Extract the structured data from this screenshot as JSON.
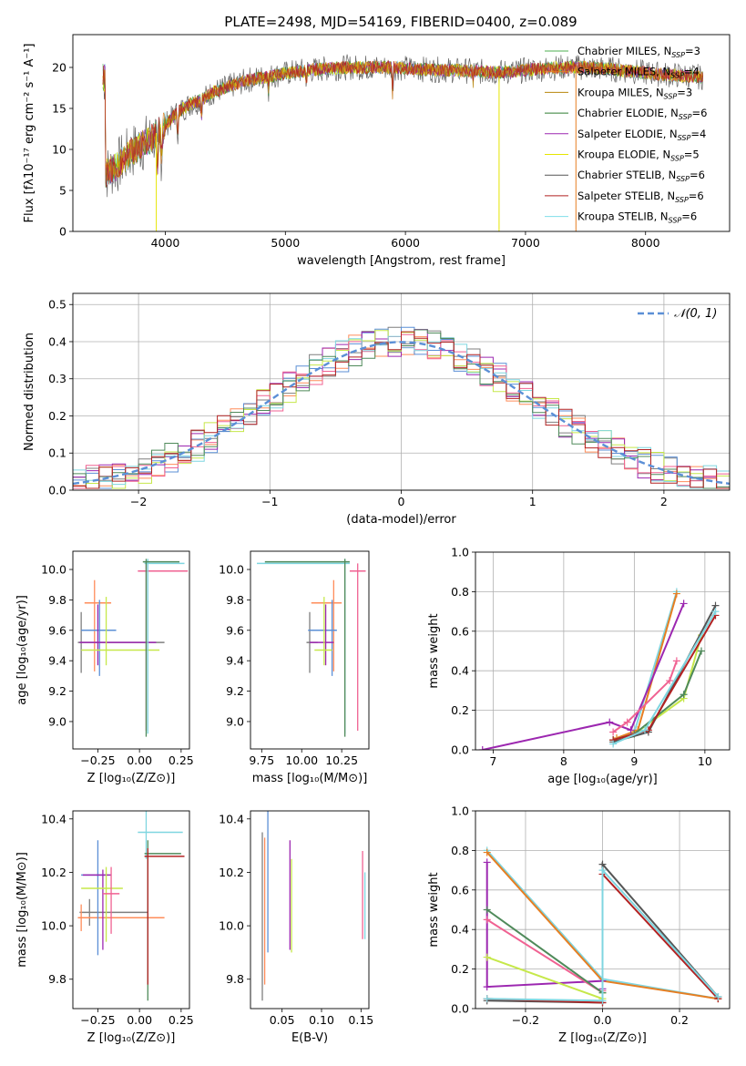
{
  "title": "PLATE=2498, MJD=54169, FIBERID=0400, z=0.089",
  "colors": {
    "series": [
      "#4caf50",
      "#e67e22",
      "#b8860b",
      "#2e7d32",
      "#9c27b0",
      "#e6e600",
      "#555555",
      "#b22222",
      "#80deea"
    ],
    "gauss": "#5b8fd6",
    "multi": [
      "#7f7f7f",
      "#ff8c5a",
      "#5b8fd6",
      "#9c27b0",
      "#c6e84a",
      "#f06292",
      "#7fd6e0",
      "#4f8a5a",
      "#b22222",
      "#e67e22",
      "#333333"
    ]
  },
  "chart_data": [
    {
      "id": "spectrum",
      "type": "line",
      "xlabel": "wavelength [Angstrom, rest frame]",
      "ylabel": "Flux [fλ10⁻¹⁷ erg cm⁻² s⁻¹ A⁻¹]",
      "xlim": [
        3230,
        8700
      ],
      "ylim": [
        0,
        24
      ],
      "xticks": [
        4000,
        5000,
        6000,
        7000,
        8000
      ],
      "yticks": [
        0,
        5,
        10,
        15,
        20
      ],
      "grid": false,
      "legend": "upper right",
      "series": [
        {
          "name": "Chabrier MILES, N",
          "sub": "SSP",
          "suffix": "=3"
        },
        {
          "name": "Salpeter MILES, N",
          "sub": "SSP",
          "suffix": "=4"
        },
        {
          "name": "Kroupa MILES, N",
          "sub": "SSP",
          "suffix": "=3"
        },
        {
          "name": "Chabrier ELODIE, N",
          "sub": "SSP",
          "suffix": "=6"
        },
        {
          "name": "Salpeter ELODIE, N",
          "sub": "SSP",
          "suffix": "=4"
        },
        {
          "name": "Kroupa ELODIE, N",
          "sub": "SSP",
          "suffix": "=5"
        },
        {
          "name": "Chabrier STELIB, N",
          "sub": "SSP",
          "suffix": "=6"
        },
        {
          "name": "Salpeter STELIB, N",
          "sub": "SSP",
          "suffix": "=6"
        },
        {
          "name": "Kroupa STELIB, N",
          "sub": "SSP",
          "suffix": "=6"
        }
      ],
      "continuum": [
        [
          3500,
          7
        ],
        [
          3600,
          8
        ],
        [
          3700,
          9.5
        ],
        [
          3800,
          10.5
        ],
        [
          3900,
          11.5
        ],
        [
          4000,
          13
        ],
        [
          4100,
          14.5
        ],
        [
          4200,
          15.5
        ],
        [
          4300,
          16
        ],
        [
          4400,
          17
        ],
        [
          4500,
          17.5
        ],
        [
          4700,
          18.5
        ],
        [
          4900,
          19
        ],
        [
          5100,
          19.5
        ],
        [
          5300,
          19.8
        ],
        [
          5500,
          20
        ],
        [
          5700,
          20
        ],
        [
          5900,
          20
        ],
        [
          6100,
          19.8
        ],
        [
          6300,
          19.7
        ],
        [
          6500,
          19.6
        ],
        [
          6700,
          19.4
        ],
        [
          6900,
          19.5
        ],
        [
          7100,
          19.8
        ],
        [
          7300,
          20
        ],
        [
          7500,
          20
        ],
        [
          7700,
          19.8
        ],
        [
          7900,
          19.5
        ],
        [
          8100,
          19.2
        ],
        [
          8300,
          19
        ],
        [
          8500,
          18.8
        ]
      ]
    },
    {
      "id": "residuals",
      "type": "histogram",
      "xlabel": "(data-model)/error",
      "ylabel": "Normed distribution",
      "xlim": [
        -2.5,
        2.5
      ],
      "ylim": [
        0,
        0.53
      ],
      "xticks": [
        -2,
        -1,
        0,
        1,
        2
      ],
      "yticks": [
        0.0,
        0.1,
        0.2,
        0.3,
        0.4,
        0.5
      ],
      "grid": true,
      "legend": "upper right",
      "legend_label": "𝒩(0, 1)",
      "bin_width": 0.1
    },
    {
      "id": "age_vs_Z",
      "type": "errorbar",
      "xlabel": "Z [log₁₀(Z/Z⊙)]",
      "ylabel": "age  [log₁₀(age/yr)]",
      "xlim": [
        -0.4,
        0.3
      ],
      "ylim": [
        8.82,
        10.12
      ],
      "xticks": [
        -0.25,
        0.0,
        0.25
      ],
      "yticks": [
        9.0,
        9.2,
        9.4,
        9.6,
        9.8,
        10.0
      ],
      "points": [
        {
          "x": -0.35,
          "y": 9.52,
          "ex": [
            0.02,
            0.5
          ],
          "ey": [
            0.2,
            0.2
          ]
        },
        {
          "x": -0.27,
          "y": 9.78,
          "ex": [
            0.06,
            0.1
          ],
          "ey": [
            0.45,
            0.15
          ]
        },
        {
          "x": -0.24,
          "y": 9.6,
          "ex": [
            0.11,
            0.1
          ],
          "ey": [
            0.3,
            0.2
          ]
        },
        {
          "x": -0.25,
          "y": 9.52,
          "ex": [
            0.11,
            0.35
          ],
          "ey": [
            0.15,
            0.25
          ]
        },
        {
          "x": -0.2,
          "y": 9.47,
          "ex": [
            0.15,
            0.32
          ],
          "ey": [
            0.1,
            0.35
          ]
        },
        {
          "x": 0.04,
          "y": 9.99,
          "ex": [
            0.05,
            0.25
          ],
          "ey": [
            1.05,
            0.05
          ]
        },
        {
          "x": 0.05,
          "y": 10.04,
          "ex": [
            0.02,
            0.22
          ],
          "ey": [
            1.12,
            0.03
          ]
        },
        {
          "x": 0.04,
          "y": 10.05,
          "ex": [
            0.02,
            0.2
          ],
          "ey": [
            1.15,
            0.02
          ]
        }
      ]
    },
    {
      "id": "age_vs_mass",
      "type": "errorbar",
      "xlabel": "mass [log₁₀(M/M⊙)]",
      "ylabel": "",
      "xlim": [
        9.68,
        10.42
      ],
      "ylim": [
        8.82,
        10.12
      ],
      "xticks": [
        9.75,
        10.0,
        10.25
      ],
      "yticks": [
        9.0,
        9.2,
        9.4,
        9.6,
        9.8,
        10.0
      ],
      "points": [
        {
          "x": 10.05,
          "y": 9.52,
          "ex": [
            0.02,
            0.05
          ],
          "ey": [
            0.2,
            0.2
          ]
        },
        {
          "x": 10.2,
          "y": 9.78,
          "ex": [
            0.14,
            0.05
          ],
          "ey": [
            0.45,
            0.15
          ]
        },
        {
          "x": 10.19,
          "y": 9.6,
          "ex": [
            0.15,
            0.03
          ],
          "ey": [
            0.3,
            0.2
          ]
        },
        {
          "x": 10.15,
          "y": 9.52,
          "ex": [
            0.1,
            0.05
          ],
          "ey": [
            0.15,
            0.25
          ]
        },
        {
          "x": 10.14,
          "y": 9.47,
          "ex": [
            0.06,
            0.05
          ],
          "ey": [
            0.1,
            0.35
          ]
        },
        {
          "x": 10.35,
          "y": 9.99,
          "ex": [
            0.05,
            0.05
          ],
          "ey": [
            1.05,
            0.05
          ]
        },
        {
          "x": 10.27,
          "y": 10.04,
          "ex": [
            0.55,
            0.03
          ],
          "ey": [
            1.12,
            0.03
          ]
        },
        {
          "x": 10.27,
          "y": 10.05,
          "ex": [
            0.5,
            0.03
          ],
          "ey": [
            1.15,
            0.02
          ]
        }
      ]
    },
    {
      "id": "weight_vs_age",
      "type": "line",
      "xlabel": "age  [log₁₀(age/yr)]",
      "ylabel": "mass weight",
      "xlim": [
        6.75,
        10.35
      ],
      "ylim": [
        0,
        1
      ],
      "xticks": [
        7,
        8,
        9,
        10
      ],
      "yticks": [
        0.0,
        0.2,
        0.4,
        0.6,
        0.8,
        1.0
      ],
      "grid": true,
      "series": [
        {
          "x": [
            8.7,
            9.0,
            9.6
          ],
          "y": [
            0.05,
            0.09,
            0.8
          ]
        },
        {
          "x": [
            8.75,
            9.05,
            9.6
          ],
          "y": [
            0.06,
            0.1,
            0.79
          ]
        },
        {
          "x": [
            6.85,
            8.65,
            8.95,
            9.7
          ],
          "y": [
            0.0,
            0.14,
            0.1,
            0.74
          ]
        },
        {
          "x": [
            8.7,
            8.9,
            9.5,
            9.6
          ],
          "y": [
            0.09,
            0.14,
            0.35,
            0.45
          ]
        },
        {
          "x": [
            8.7,
            9.0,
            9.7,
            9.95
          ],
          "y": [
            0.05,
            0.08,
            0.26,
            0.58
          ]
        },
        {
          "x": [
            8.7,
            9.0,
            9.7,
            9.95
          ],
          "y": [
            0.05,
            0.08,
            0.28,
            0.5
          ]
        },
        {
          "x": [
            8.7,
            9.2,
            10.15
          ],
          "y": [
            0.04,
            0.09,
            0.73
          ]
        },
        {
          "x": [
            8.7,
            9.2,
            10.15
          ],
          "y": [
            0.05,
            0.1,
            0.68
          ]
        },
        {
          "x": [
            8.7,
            9.15,
            10.15
          ],
          "y": [
            0.03,
            0.1,
            0.7
          ]
        }
      ]
    },
    {
      "id": "mass_vs_Z",
      "type": "errorbar",
      "xlabel": "Z [log₁₀(Z/Z⊙)]",
      "ylabel": "mass [log₁₀(M/M⊙)]",
      "xlim": [
        -0.4,
        0.3
      ],
      "ylim": [
        9.69,
        10.43
      ],
      "xticks": [
        -0.25,
        0.0,
        0.25
      ],
      "yticks": [
        9.8,
        10.0,
        10.2,
        10.4
      ],
      "points": [
        {
          "x": -0.3,
          "y": 10.05,
          "ex": [
            0.06,
            0.35
          ],
          "ey": [
            0.05,
            0.05
          ]
        },
        {
          "x": -0.35,
          "y": 10.03,
          "ex": [
            0.02,
            0.5
          ],
          "ey": [
            0.05,
            0.05
          ]
        },
        {
          "x": -0.25,
          "y": 10.19,
          "ex": [
            0.1,
            0.06
          ],
          "ey": [
            0.3,
            0.13
          ]
        },
        {
          "x": -0.22,
          "y": 10.19,
          "ex": [
            0.12,
            0.05
          ],
          "ey": [
            0.28,
            0.02
          ]
        },
        {
          "x": -0.2,
          "y": 10.14,
          "ex": [
            0.15,
            0.1
          ],
          "ey": [
            0.2,
            0.08
          ]
        },
        {
          "x": -0.17,
          "y": 10.12,
          "ex": [
            0.05,
            0.05
          ],
          "ey": [
            0.15,
            0.1
          ]
        },
        {
          "x": 0.04,
          "y": 10.35,
          "ex": [
            0.05,
            0.22
          ],
          "ey": [
            0.1,
            0.08
          ]
        },
        {
          "x": 0.05,
          "y": 10.27,
          "ex": [
            0.02,
            0.2
          ],
          "ey": [
            0.55,
            0.05
          ]
        },
        {
          "x": 0.05,
          "y": 10.26,
          "ex": [
            0.02,
            0.22
          ],
          "ey": [
            0.48,
            0.03
          ]
        }
      ]
    },
    {
      "id": "mass_vs_EBV",
      "type": "errorbar",
      "xlabel": "E(B-V)",
      "ylabel": "",
      "xlim": [
        0.01,
        0.16
      ],
      "ylim": [
        9.69,
        10.43
      ],
      "xticks": [
        0.05,
        0.1,
        0.15
      ],
      "yticks": [
        9.8,
        10.0,
        10.2,
        10.4
      ],
      "points": [
        {
          "x": 0.025,
          "y": 10.05,
          "ex": [
            0,
            0
          ],
          "ey": [
            0.33,
            0.3
          ]
        },
        {
          "x": 0.028,
          "y": 10.03,
          "ex": [
            0,
            0
          ],
          "ey": [
            0.25,
            0.3
          ]
        },
        {
          "x": 0.032,
          "y": 10.18,
          "ex": [
            0,
            0
          ],
          "ey": [
            0.28,
            0.25
          ]
        },
        {
          "x": 0.06,
          "y": 10.2,
          "ex": [
            0,
            0
          ],
          "ey": [
            0.29,
            0.12
          ]
        },
        {
          "x": 0.062,
          "y": 10.1,
          "ex": [
            0,
            0
          ],
          "ey": [
            0.2,
            0.15
          ]
        },
        {
          "x": 0.152,
          "y": 10.1,
          "ex": [
            0,
            0
          ],
          "ey": [
            0.15,
            0.18
          ]
        },
        {
          "x": 0.155,
          "y": 10.05,
          "ex": [
            0,
            0
          ],
          "ey": [
            0.1,
            0.15
          ]
        }
      ]
    },
    {
      "id": "weight_vs_Z",
      "type": "line",
      "xlabel": "Z [log₁₀(Z/Z⊙)]",
      "ylabel": "mass weight",
      "xlim": [
        -0.33,
        0.33
      ],
      "ylim": [
        0,
        1
      ],
      "xticks": [
        -0.2,
        0.0,
        0.2
      ],
      "yticks": [
        0.0,
        0.2,
        0.4,
        0.6,
        0.8,
        1.0
      ],
      "grid": true,
      "series": [
        {
          "x": [
            -0.3,
            0.0,
            0.3
          ],
          "y": [
            0.8,
            0.15,
            0.05
          ]
        },
        {
          "x": [
            -0.3,
            0.0,
            0.3
          ],
          "y": [
            0.79,
            0.14,
            0.05
          ]
        },
        {
          "x": [
            -0.3,
            -0.3,
            0.0,
            0.0
          ],
          "y": [
            0.74,
            0.11,
            0.14,
            0.1
          ]
        },
        {
          "x": [
            -0.3,
            0.0,
            0.0
          ],
          "y": [
            0.45,
            0.08,
            0.09
          ]
        },
        {
          "x": [
            -0.3,
            0.0,
            0.0
          ],
          "y": [
            0.26,
            0.05,
            0.08
          ]
        },
        {
          "x": [
            -0.3,
            0.0
          ],
          "y": [
            0.5,
            0.08
          ]
        },
        {
          "x": [
            -0.3,
            0.0,
            0.0,
            0.3
          ],
          "y": [
            0.04,
            0.03,
            0.73,
            0.06
          ]
        },
        {
          "x": [
            -0.3,
            0.0,
            0.0,
            0.3
          ],
          "y": [
            0.05,
            0.03,
            0.68,
            0.05
          ]
        },
        {
          "x": [
            -0.3,
            0.0,
            0.0,
            0.3
          ],
          "y": [
            0.05,
            0.04,
            0.7,
            0.06
          ]
        }
      ]
    }
  ]
}
